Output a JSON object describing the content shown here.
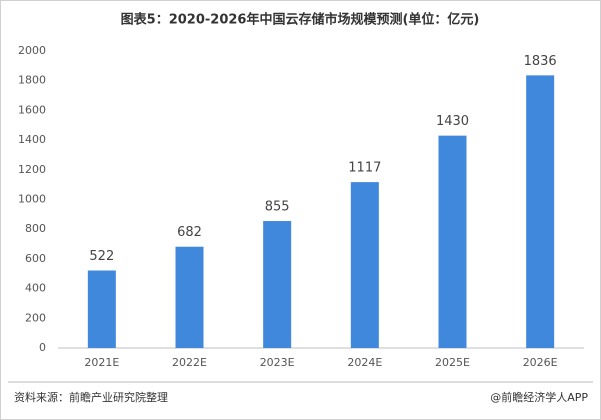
{
  "chart_data": {
    "type": "bar",
    "title": "图表5：2020-2026年中国云存储市场规模预测(单位：亿元)",
    "categories": [
      "2021E",
      "2022E",
      "2023E",
      "2024E",
      "2025E",
      "2026E"
    ],
    "values": [
      522,
      682,
      855,
      1117,
      1430,
      1836
    ],
    "color": "#3f88dc",
    "ylim": [
      0,
      2000
    ],
    "yticks": [
      0,
      200,
      400,
      600,
      800,
      1000,
      1200,
      1400,
      1600,
      1800,
      2000
    ],
    "grid": false
  },
  "footer": {
    "source": "资料来源：前瞻产业研究院整理",
    "credit": "@前瞻经济学人APP"
  }
}
